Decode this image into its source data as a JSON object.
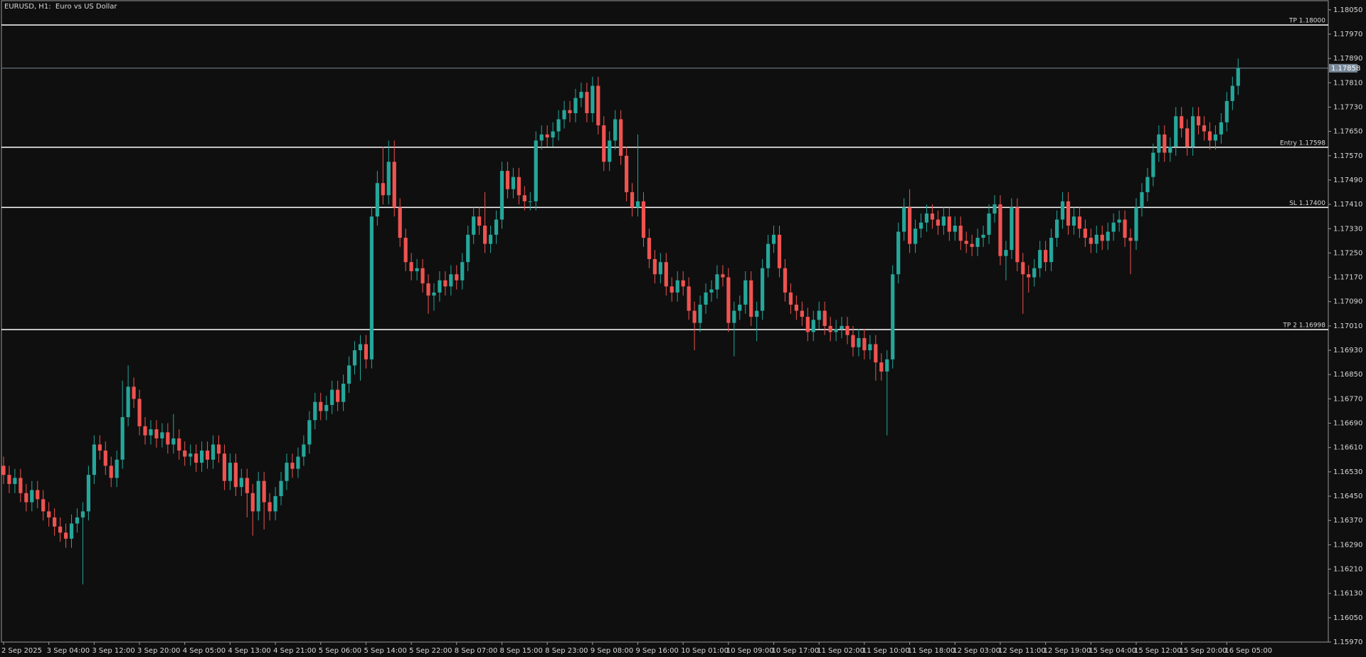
{
  "chart_data": {
    "type": "candlestick",
    "title": "EURUSD, H1:  Euro vs US Dollar",
    "categories": [
      "2 Sep 2025",
      null,
      null,
      null,
      null,
      null,
      null,
      null,
      "3 Sep 04:00",
      null,
      null,
      null,
      null,
      null,
      null,
      null,
      "3 Sep 12:00",
      null,
      null,
      null,
      null,
      null,
      null,
      null,
      "3 Sep 20:00",
      null,
      null,
      null,
      null,
      null,
      null,
      null,
      "4 Sep 05:00",
      null,
      null,
      null,
      null,
      null,
      null,
      null,
      "4 Sep 13:00",
      null,
      null,
      null,
      null,
      null,
      null,
      null,
      "4 Sep 21:00",
      null,
      null,
      null,
      null,
      null,
      null,
      null,
      "5 Sep 06:00",
      null,
      null,
      null,
      null,
      null,
      null,
      null,
      "5 Sep 14:00",
      null,
      null,
      null,
      null,
      null,
      null,
      null,
      "5 Sep 22:00",
      null,
      null,
      null,
      null,
      null,
      null,
      null,
      "8 Sep 07:00",
      null,
      null,
      null,
      null,
      null,
      null,
      null,
      "8 Sep 15:00",
      null,
      null,
      null,
      null,
      null,
      null,
      null,
      "8 Sep 23:00",
      null,
      null,
      null,
      null,
      null,
      null,
      null,
      "9 Sep 08:00",
      null,
      null,
      null,
      null,
      null,
      null,
      null,
      "9 Sep 16:00",
      null,
      null,
      null,
      null,
      null,
      null,
      null,
      "10 Sep 01:00",
      null,
      null,
      null,
      null,
      null,
      null,
      null,
      "10 Sep 09:00",
      null,
      null,
      null,
      null,
      null,
      null,
      null,
      "10 Sep 17:00",
      null,
      null,
      null,
      null,
      null,
      null,
      null,
      "11 Sep 02:00",
      null,
      null,
      null,
      null,
      null,
      null,
      null,
      "11 Sep 10:00",
      null,
      null,
      null,
      null,
      null,
      null,
      null,
      "11 Sep 18:00",
      null,
      null,
      null,
      null,
      null,
      null,
      null,
      "12 Sep 03:00",
      null,
      null,
      null,
      null,
      null,
      null,
      null,
      "12 Sep 11:00",
      null,
      null,
      null,
      null,
      null,
      null,
      null,
      "12 Sep 19:00",
      null,
      null,
      null,
      null,
      null,
      null,
      null,
      "15 Sep 04:00",
      null,
      null,
      null,
      null,
      null,
      null,
      null,
      "15 Sep 12:00",
      null,
      null,
      null,
      null,
      null,
      null,
      null,
      "15 Sep 20:00",
      null,
      null,
      null,
      null,
      null,
      null,
      null,
      "16 Sep 05:00",
      null,
      null
    ],
    "open": [
      1.1655,
      1.1652,
      1.1649,
      1.1651,
      1.1646,
      1.1643,
      1.1647,
      1.1644,
      1.164,
      1.1638,
      1.1635,
      1.1633,
      1.1631,
      1.1636,
      1.1638,
      1.164,
      1.1652,
      1.1662,
      1.166,
      1.1655,
      1.1651,
      1.1657,
      1.1671,
      1.1681,
      1.1677,
      1.1668,
      1.1665,
      1.1667,
      1.1664,
      1.1666,
      1.1662,
      1.1664,
      1.166,
      1.1658,
      1.1659,
      1.1656,
      1.166,
      1.1657,
      1.1662,
      1.1659,
      1.165,
      1.1656,
      1.1648,
      1.1651,
      1.1646,
      1.164,
      1.165,
      1.1643,
      1.164,
      1.1645,
      1.165,
      1.1656,
      1.1654,
      1.1658,
      1.1662,
      1.167,
      1.1676,
      1.1673,
      1.1675,
      1.168,
      1.1676,
      1.1682,
      1.1688,
      1.1693,
      1.1695,
      1.169,
      1.1737,
      1.1748,
      1.1744,
      1.1755,
      1.174,
      1.173,
      1.1722,
      1.1719,
      1.172,
      1.1715,
      1.1711,
      1.1712,
      1.1716,
      1.1714,
      1.1718,
      1.1716,
      1.1722,
      1.1731,
      1.1737,
      1.1734,
      1.1728,
      1.1731,
      1.1736,
      1.1752,
      1.1746,
      1.175,
      1.1744,
      1.1742,
      1.1742,
      1.1762,
      1.1764,
      1.1763,
      1.1765,
      1.1769,
      1.1772,
      1.1771,
      1.1776,
      1.1778,
      1.1771,
      1.178,
      1.1767,
      1.1755,
      1.1762,
      1.1769,
      1.1757,
      1.1745,
      1.174,
      1.1742,
      1.173,
      1.1723,
      1.1718,
      1.1722,
      1.1714,
      1.1712,
      1.1716,
      1.1714,
      1.1706,
      1.1702,
      1.1708,
      1.1712,
      1.1713,
      1.1718,
      1.1717,
      1.1702,
      1.1706,
      1.1708,
      1.1716,
      1.1704,
      1.1706,
      1.172,
      1.1728,
      1.1731,
      1.172,
      1.1712,
      1.1708,
      1.1706,
      1.1704,
      1.1699,
      1.1703,
      1.1706,
      1.1701,
      1.1699,
      1.17,
      1.1701,
      1.1698,
      1.1694,
      1.1697,
      1.1693,
      1.1695,
      1.1689,
      1.1686,
      1.169,
      1.1718,
      1.1732,
      1.174,
      1.1728,
      1.1733,
      1.1735,
      1.1738,
      1.1736,
      1.1734,
      1.1737,
      1.1732,
      1.1734,
      1.1729,
      1.1728,
      1.1727,
      1.173,
      1.1731,
      1.1738,
      1.1741,
      1.1724,
      1.1726,
      1.174,
      1.1722,
      1.1718,
      1.1717,
      1.172,
      1.1726,
      1.1722,
      1.173,
      1.1736,
      1.1742,
      1.1734,
      1.1737,
      1.1733,
      1.173,
      1.1728,
      1.1731,
      1.1729,
      1.1732,
      1.1735,
      1.1736,
      1.173,
      1.1729,
      1.174,
      1.1745,
      1.175,
      1.1758,
      1.1764,
      1.1758,
      1.176,
      1.177,
      1.1766,
      1.176,
      1.177,
      1.1767,
      1.1765,
      1.1762,
      1.1764,
      1.1768,
      1.1775,
      1.178
    ],
    "high": [
      1.1658,
      1.1655,
      1.1654,
      1.1654,
      1.1649,
      1.165,
      1.165,
      1.1647,
      1.1643,
      1.1641,
      1.1638,
      1.1636,
      1.1639,
      1.1641,
      1.1643,
      1.1655,
      1.1665,
      1.1665,
      1.1663,
      1.1658,
      1.166,
      1.1683,
      1.1688,
      1.1684,
      1.168,
      1.1671,
      1.167,
      1.167,
      1.1669,
      1.1669,
      1.1672,
      1.1667,
      1.1663,
      1.1662,
      1.1662,
      1.1663,
      1.1663,
      1.1665,
      1.1665,
      1.1662,
      1.1659,
      1.1659,
      1.1654,
      1.1654,
      1.1649,
      1.1653,
      1.1653,
      1.1646,
      1.1648,
      1.1653,
      1.1659,
      1.1659,
      1.1661,
      1.1665,
      1.1673,
      1.1679,
      1.1679,
      1.1678,
      1.1683,
      1.1683,
      1.1685,
      1.1691,
      1.1696,
      1.1698,
      1.1698,
      1.174,
      1.1752,
      1.176,
      1.1762,
      1.1762,
      1.1743,
      1.1733,
      1.1725,
      1.1723,
      1.1723,
      1.1718,
      1.1715,
      1.1719,
      1.1719,
      1.1721,
      1.1721,
      1.1725,
      1.1734,
      1.174,
      1.174,
      1.1745,
      1.1734,
      1.1739,
      1.1755,
      1.1755,
      1.1753,
      1.1753,
      1.1747,
      1.1745,
      1.1765,
      1.1767,
      1.1767,
      1.1768,
      1.1772,
      1.1775,
      1.1775,
      1.1779,
      1.1781,
      1.1781,
      1.1783,
      1.1783,
      1.177,
      1.1765,
      1.1772,
      1.1772,
      1.176,
      1.1748,
      1.1764,
      1.1745,
      1.1733,
      1.1726,
      1.1725,
      1.1725,
      1.1717,
      1.1719,
      1.1719,
      1.1717,
      1.1709,
      1.1711,
      1.1715,
      1.1716,
      1.1721,
      1.1721,
      1.172,
      1.1709,
      1.1711,
      1.1719,
      1.1719,
      1.1709,
      1.1723,
      1.1731,
      1.1734,
      1.1734,
      1.1723,
      1.1715,
      1.1711,
      1.1709,
      1.1707,
      1.1706,
      1.1709,
      1.1709,
      1.1704,
      1.1703,
      1.1704,
      1.1704,
      1.1701,
      1.17,
      1.17,
      1.1698,
      1.1698,
      1.1692,
      1.1693,
      1.1721,
      1.1735,
      1.1743,
      1.1746,
      1.1736,
      1.1738,
      1.1741,
      1.1741,
      1.1739,
      1.174,
      1.174,
      1.1737,
      1.1737,
      1.1732,
      1.1731,
      1.1733,
      1.1734,
      1.1741,
      1.1744,
      1.1744,
      1.1729,
      1.1743,
      1.1743,
      1.1725,
      1.1721,
      1.1723,
      1.1729,
      1.1729,
      1.1733,
      1.1739,
      1.1745,
      1.1745,
      1.174,
      1.174,
      1.1736,
      1.1733,
      1.1734,
      1.1734,
      1.1735,
      1.1738,
      1.1739,
      1.1739,
      1.1733,
      1.1743,
      1.1748,
      1.1753,
      1.1761,
      1.1767,
      1.1767,
      1.1763,
      1.1773,
      1.1773,
      1.1769,
      1.1773,
      1.1773,
      1.177,
      1.1768,
      1.1767,
      1.1771,
      1.1778,
      1.1783,
      1.1789
    ],
    "low": [
      1.1649,
      1.1646,
      1.1646,
      1.1643,
      1.164,
      1.164,
      1.1641,
      1.1637,
      1.1635,
      1.1632,
      1.163,
      1.1628,
      1.1628,
      1.1633,
      1.1616,
      1.1637,
      1.1649,
      1.1657,
      1.1652,
      1.1648,
      1.1648,
      1.1654,
      1.1668,
      1.1674,
      1.1665,
      1.1662,
      1.1662,
      1.1661,
      1.1661,
      1.1659,
      1.1659,
      1.1657,
      1.1655,
      1.1655,
      1.1653,
      1.1653,
      1.1654,
      1.1654,
      1.1656,
      1.1647,
      1.1647,
      1.1645,
      1.1645,
      1.1638,
      1.1632,
      1.1637,
      1.1634,
      1.1637,
      1.1637,
      1.1642,
      1.1647,
      1.1651,
      1.1651,
      1.1655,
      1.1659,
      1.1667,
      1.167,
      1.167,
      1.1672,
      1.1673,
      1.1673,
      1.1679,
      1.1685,
      1.1683,
      1.1687,
      1.1687,
      1.1734,
      1.1741,
      1.1741,
      1.1737,
      1.1727,
      1.1719,
      1.1716,
      1.1716,
      1.1712,
      1.1705,
      1.1706,
      1.1709,
      1.1711,
      1.1711,
      1.1713,
      1.1713,
      1.1719,
      1.1728,
      1.1731,
      1.1725,
      1.1725,
      1.1728,
      1.1733,
      1.1743,
      1.1743,
      1.1741,
      1.1739,
      1.1739,
      1.1739,
      1.1759,
      1.176,
      1.176,
      1.1762,
      1.1766,
      1.1768,
      1.1768,
      1.1773,
      1.1768,
      1.1768,
      1.1764,
      1.1752,
      1.1752,
      1.1759,
      1.1754,
      1.1742,
      1.1737,
      1.1737,
      1.1727,
      1.172,
      1.1715,
      1.1715,
      1.1711,
      1.1709,
      1.1709,
      1.1711,
      1.1703,
      1.1693,
      1.1699,
      1.1705,
      1.1709,
      1.171,
      1.1714,
      1.1699,
      1.1691,
      1.1703,
      1.1705,
      1.1701,
      1.1696,
      1.1703,
      1.1717,
      1.1725,
      1.1717,
      1.1709,
      1.1705,
      1.1703,
      1.1701,
      1.1696,
      1.1696,
      1.17,
      1.1698,
      1.1696,
      1.1696,
      1.1697,
      1.1695,
      1.1691,
      1.1691,
      1.169,
      1.169,
      1.1683,
      1.1683,
      1.1665,
      1.1687,
      1.1715,
      1.1729,
      1.1725,
      1.1725,
      1.173,
      1.1732,
      1.1733,
      1.1731,
      1.1731,
      1.1729,
      1.1729,
      1.1726,
      1.1725,
      1.1724,
      1.1724,
      1.1727,
      1.1728,
      1.1735,
      1.1721,
      1.1716,
      1.1723,
      1.1719,
      1.1705,
      1.1712,
      1.1714,
      1.1717,
      1.1719,
      1.1719,
      1.1727,
      1.1733,
      1.1731,
      1.1731,
      1.173,
      1.1727,
      1.1725,
      1.1725,
      1.1726,
      1.1726,
      1.1729,
      1.1732,
      1.1727,
      1.1718,
      1.1726,
      1.1737,
      1.1742,
      1.1747,
      1.1755,
      1.1755,
      1.1755,
      1.1757,
      1.1763,
      1.1757,
      1.1757,
      1.1764,
      1.1762,
      1.1759,
      1.1759,
      1.1761,
      1.1765,
      1.1772,
      1.1777
    ],
    "close": [
      1.1652,
      1.1649,
      1.1651,
      1.1646,
      1.1643,
      1.1647,
      1.1644,
      1.164,
      1.1638,
      1.1635,
      1.1633,
      1.1631,
      1.1636,
      1.1638,
      1.164,
      1.1652,
      1.1662,
      1.166,
      1.1655,
      1.1651,
      1.1657,
      1.1671,
      1.1681,
      1.1677,
      1.1668,
      1.1665,
      1.1667,
      1.1664,
      1.1666,
      1.1662,
      1.1664,
      1.166,
      1.1658,
      1.1659,
      1.1656,
      1.166,
      1.1657,
      1.1662,
      1.1659,
      1.165,
      1.1656,
      1.1648,
      1.1651,
      1.1646,
      1.164,
      1.165,
      1.1643,
      1.164,
      1.1645,
      1.165,
      1.1656,
      1.1654,
      1.1658,
      1.1662,
      1.167,
      1.1676,
      1.1673,
      1.1675,
      1.168,
      1.1676,
      1.1682,
      1.1688,
      1.1693,
      1.1695,
      1.169,
      1.1737,
      1.1748,
      1.1744,
      1.1755,
      1.174,
      1.173,
      1.1722,
      1.1719,
      1.172,
      1.1715,
      1.1711,
      1.1712,
      1.1716,
      1.1714,
      1.1718,
      1.1716,
      1.1722,
      1.1731,
      1.1737,
      1.1734,
      1.1728,
      1.1731,
      1.1736,
      1.1752,
      1.1746,
      1.175,
      1.1744,
      1.1742,
      1.1742,
      1.1762,
      1.1764,
      1.1763,
      1.1765,
      1.1769,
      1.1772,
      1.1771,
      1.1776,
      1.1778,
      1.1771,
      1.178,
      1.1767,
      1.1755,
      1.1762,
      1.1769,
      1.1757,
      1.1745,
      1.174,
      1.1742,
      1.173,
      1.1723,
      1.1718,
      1.1722,
      1.1714,
      1.1712,
      1.1716,
      1.1714,
      1.1706,
      1.1702,
      1.1708,
      1.1712,
      1.1713,
      1.1718,
      1.1717,
      1.1702,
      1.1706,
      1.1708,
      1.1716,
      1.1704,
      1.1706,
      1.172,
      1.1728,
      1.1731,
      1.172,
      1.1712,
      1.1708,
      1.1706,
      1.1704,
      1.1699,
      1.1703,
      1.1706,
      1.1701,
      1.1699,
      1.17,
      1.1701,
      1.1698,
      1.1694,
      1.1697,
      1.1693,
      1.1695,
      1.1689,
      1.1686,
      1.169,
      1.1718,
      1.1732,
      1.174,
      1.1728,
      1.1733,
      1.1735,
      1.1738,
      1.1736,
      1.1734,
      1.1737,
      1.1732,
      1.1734,
      1.1729,
      1.1728,
      1.1727,
      1.173,
      1.1731,
      1.1738,
      1.1741,
      1.1724,
      1.1726,
      1.174,
      1.1722,
      1.1718,
      1.1717,
      1.172,
      1.1726,
      1.1722,
      1.173,
      1.1736,
      1.1742,
      1.1734,
      1.1737,
      1.1733,
      1.173,
      1.1728,
      1.1731,
      1.1729,
      1.1732,
      1.1735,
      1.1736,
      1.173,
      1.1729,
      1.174,
      1.1745,
      1.175,
      1.1758,
      1.1764,
      1.1758,
      1.176,
      1.177,
      1.1766,
      1.176,
      1.177,
      1.1767,
      1.1765,
      1.1762,
      1.1764,
      1.1768,
      1.1775,
      1.178,
      1.17858
    ],
    "colors": {
      "up": "#26a69a",
      "down": "#ef5350",
      "level": "#ffffff",
      "price_line": "#778899"
    },
    "ylim": [
      1.1597,
      1.1808
    ],
    "yticks": [
      {
        "value": 1.1805,
        "label": "1.18050"
      },
      {
        "value": 1.1797,
        "label": "1.17970"
      },
      {
        "value": 1.1789,
        "label": "1.17890"
      },
      {
        "value": 1.1781,
        "label": "1.17810"
      },
      {
        "value": 1.1773,
        "label": "1.17730"
      },
      {
        "value": 1.1765,
        "label": "1.17650"
      },
      {
        "value": 1.1757,
        "label": "1.17570"
      },
      {
        "value": 1.1749,
        "label": "1.17490"
      },
      {
        "value": 1.1741,
        "label": "1.17410"
      },
      {
        "value": 1.1733,
        "label": "1.17330"
      },
      {
        "value": 1.1725,
        "label": "1.17250"
      },
      {
        "value": 1.1717,
        "label": "1.17170"
      },
      {
        "value": 1.1709,
        "label": "1.17090"
      },
      {
        "value": 1.1701,
        "label": "1.17010"
      },
      {
        "value": 1.1693,
        "label": "1.16930"
      },
      {
        "value": 1.1685,
        "label": "1.16850"
      },
      {
        "value": 1.1677,
        "label": "1.16770"
      },
      {
        "value": 1.1669,
        "label": "1.16690"
      },
      {
        "value": 1.1661,
        "label": "1.16610"
      },
      {
        "value": 1.1653,
        "label": "1.16530"
      },
      {
        "value": 1.1645,
        "label": "1.16450"
      },
      {
        "value": 1.1637,
        "label": "1.16370"
      },
      {
        "value": 1.1629,
        "label": "1.16290"
      },
      {
        "value": 1.1621,
        "label": "1.16210"
      },
      {
        "value": 1.1613,
        "label": "1.16130"
      },
      {
        "value": 1.1605,
        "label": "1.16050"
      },
      {
        "value": 1.1597,
        "label": "1.15970"
      }
    ],
    "levels": [
      {
        "value": 1.18,
        "label": "TP 1.18000"
      },
      {
        "value": 1.17598,
        "label": "Entry 1.17598"
      },
      {
        "value": 1.174,
        "label": "SL 1.17400"
      },
      {
        "value": 1.16998,
        "label": "TP 2 1.16998"
      }
    ],
    "price_line": {
      "value": 1.17858,
      "label": "1.17858"
    }
  }
}
